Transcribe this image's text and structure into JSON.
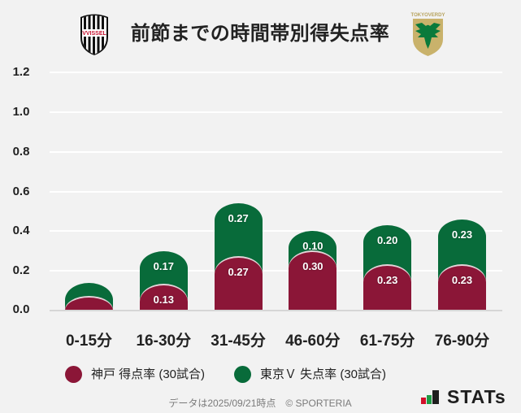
{
  "header": {
    "title": "前節までの時間帯別得失点率",
    "home_logo": "vissel-kobe-crest",
    "away_logo": "tokyo-verdy-crest",
    "away_logo_text": "TOKYOVERDY"
  },
  "chart_data": {
    "type": "bar",
    "stacked": true,
    "title": "前節までの時間帯別得失点率",
    "xlabel": "",
    "ylabel": "",
    "ylim": [
      0,
      1.2
    ],
    "yticks": [
      "0.0",
      "0.2",
      "0.4",
      "0.6",
      "0.8",
      "1.0",
      "1.2"
    ],
    "grid": true,
    "legend_position": "bottom",
    "categories": [
      "0-15分",
      "16-30分",
      "31-45分",
      "46-60分",
      "61-75分",
      "76-90分"
    ],
    "series": [
      {
        "name": "神戸 得点率 (30試合)",
        "color": "#8b1637",
        "values": [
          0.07,
          0.13,
          0.27,
          0.3,
          0.23,
          0.23
        ],
        "labels": [
          "",
          "0.13",
          "0.27",
          "0.30",
          "0.23",
          "0.23"
        ]
      },
      {
        "name": "東京Ｖ 失点率 (30試合)",
        "color": "#086b3a",
        "values": [
          0.07,
          0.17,
          0.27,
          0.1,
          0.2,
          0.23
        ],
        "labels": [
          "",
          "0.17",
          "0.27",
          "0.10",
          "0.20",
          "0.23"
        ]
      }
    ]
  },
  "legend": {
    "items": [
      {
        "label": "神戸 得点率 (30試合)",
        "color": "#8b1637"
      },
      {
        "label": "東京Ｖ 失点率 (30試合)",
        "color": "#086b3a"
      }
    ]
  },
  "footer": {
    "note": "データは2025/09/21時点　© SPORTERIA",
    "brand": "STATs",
    "brand_bar_colors": [
      "#d2102a",
      "#1f9a45",
      "#1e1e1e"
    ]
  }
}
